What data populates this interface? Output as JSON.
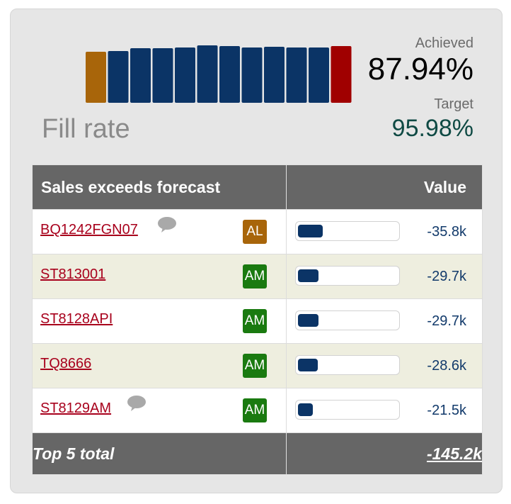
{
  "kpi": {
    "title": "Fill rate",
    "achieved_label": "Achieved",
    "achieved_value": "87.94%",
    "target_label": "Target",
    "target_value": "95.98%"
  },
  "sparkline": {
    "colors": [
      "#a8650a",
      "#0b3466",
      "#0b3466",
      "#0b3466",
      "#0b3466",
      "#0b3466",
      "#0b3466",
      "#0b3466",
      "#0b3466",
      "#0b3466",
      "#0b3466",
      "#a00000"
    ],
    "levels": [
      0.86,
      0.87,
      0.92,
      0.92,
      0.93,
      0.97,
      0.95,
      0.93,
      0.94,
      0.93,
      0.93,
      0.95
    ]
  },
  "table": {
    "header_name": "Sales exceeds forecast",
    "header_value": "Value",
    "rows": [
      {
        "name": "BQ1242FGN07",
        "comment": true,
        "badge": "AL",
        "badge_color": "#a8650a",
        "value": "-35.8k",
        "fill": 0.25
      },
      {
        "name": "ST813001",
        "comment": false,
        "badge": "AM",
        "badge_color": "#1a7a10",
        "value": "-29.7k",
        "fill": 0.21
      },
      {
        "name": "ST8128API",
        "comment": false,
        "badge": "AM",
        "badge_color": "#1a7a10",
        "value": "-29.7k",
        "fill": 0.21
      },
      {
        "name": "TQ8666",
        "comment": false,
        "badge": "AM",
        "badge_color": "#1a7a10",
        "value": "-28.6k",
        "fill": 0.2
      },
      {
        "name": "ST8129AM",
        "comment": true,
        "badge": "AM",
        "badge_color": "#1a7a10",
        "value": "-21.5k",
        "fill": 0.15
      }
    ],
    "total_label": "Top 5 total",
    "total_value": "-145.2k"
  },
  "icons": {
    "comment": "speech-bubble-icon"
  }
}
